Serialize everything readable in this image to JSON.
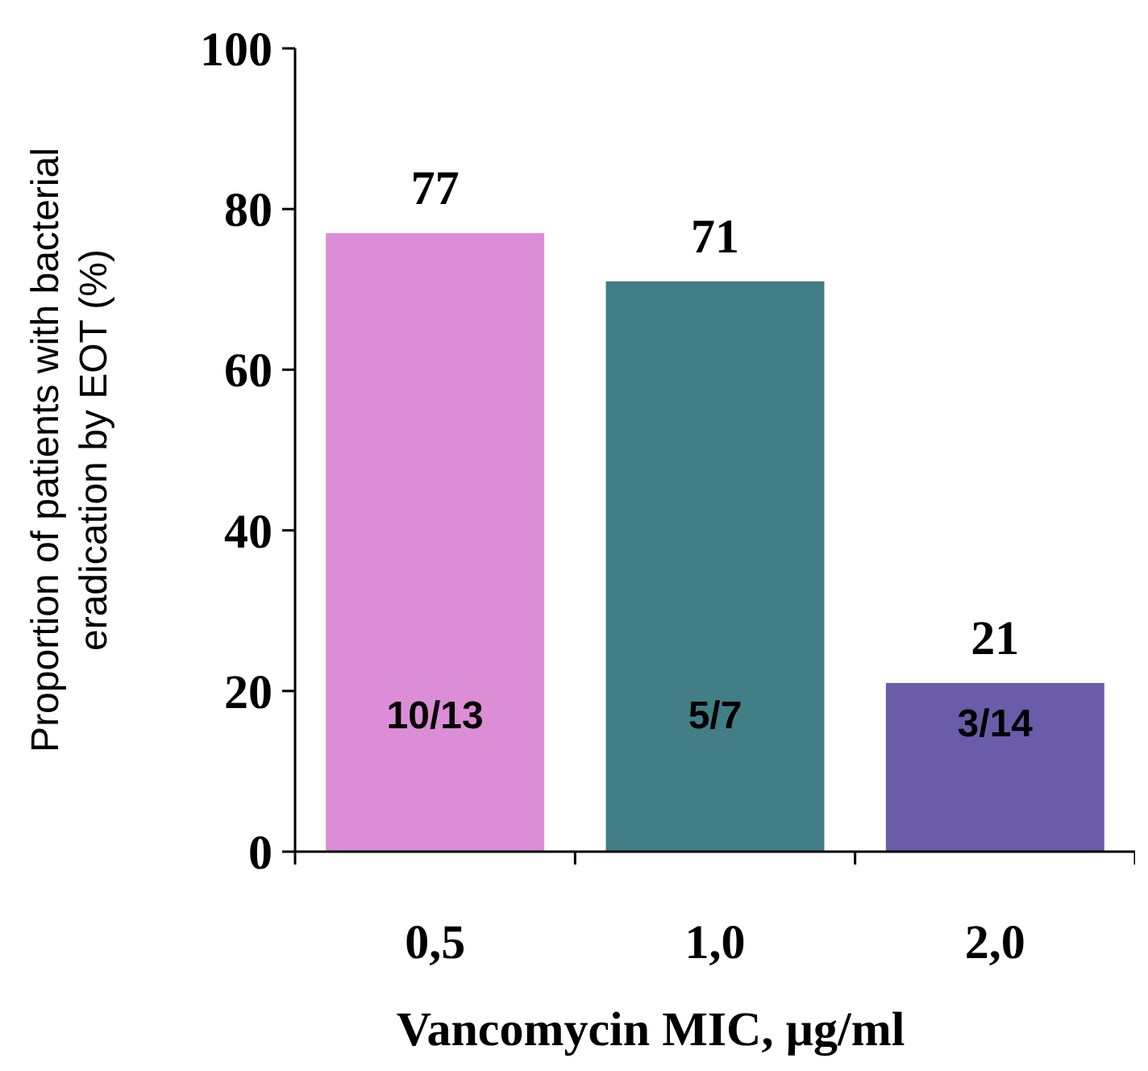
{
  "chart_data": {
    "type": "bar",
    "xlabel": "Vancomycin MIC, µg/ml",
    "ylabel": "Proportion of patients with bacterial eradication by EOT (%)",
    "categories": [
      "0,5",
      "1,0",
      "2,0"
    ],
    "values": [
      77,
      71,
      21
    ],
    "colors": [
      "#db8ed6",
      "#427e85",
      "#6a5ca8"
    ],
    "ylim": [
      0,
      100
    ],
    "yticks": [
      0,
      20,
      40,
      60,
      80,
      100
    ],
    "grid": false,
    "data_labels": true,
    "annotations": [
      "10/13",
      "5/7",
      "3/14"
    ]
  }
}
